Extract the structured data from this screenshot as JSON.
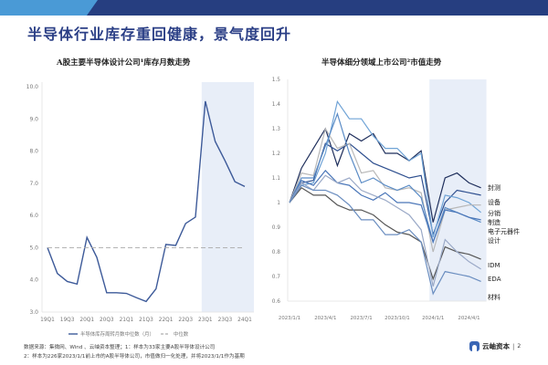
{
  "header": {
    "title": "半导体行业库存重回健康，景气度回升",
    "band_colors": {
      "light": "#4a9ad6",
      "dark": "#263e80"
    }
  },
  "chart_data": [
    {
      "type": "line",
      "title": "A股主要半导体设计公司¹库存月数走势",
      "xlabel": "",
      "ylabel": "",
      "ylim": [
        3.0,
        10.0
      ],
      "yticks": [
        "10.0",
        "9.0",
        "8.0",
        "7.0",
        "6.0",
        "5.0",
        "4.0",
        "3.0"
      ],
      "x_tick_labels": [
        "19Q1",
        "19Q3",
        "20Q1",
        "20Q3",
        "21Q1",
        "21Q3",
        "22Q1",
        "22Q3",
        "23Q1",
        "23Q3",
        "24Q1"
      ],
      "categories": [
        "19Q1",
        "19Q2",
        "19Q3",
        "19Q4",
        "20Q1",
        "20Q2",
        "20Q3",
        "20Q4",
        "21Q1",
        "21Q2",
        "21Q3",
        "21Q4",
        "22Q1",
        "22Q2",
        "22Q3",
        "22Q4",
        "23Q1",
        "23Q2",
        "23Q3",
        "23Q4",
        "24Q1"
      ],
      "series": [
        {
          "name": "半导体库存周转月数中位数（月）",
          "style": "solid",
          "color": "#3d5a99",
          "values": [
            5.0,
            4.2,
            3.95,
            3.87,
            5.32,
            4.7,
            3.6,
            3.6,
            3.58,
            3.45,
            3.33,
            3.72,
            5.1,
            5.07,
            5.75,
            5.95,
            9.55,
            8.3,
            7.7,
            7.05,
            6.9
          ]
        },
        {
          "name": "中位数",
          "style": "dashed",
          "color": "#aaaaaa",
          "values": [
            5.0,
            5.0,
            5.0,
            5.0,
            5.0,
            5.0,
            5.0,
            5.0,
            5.0,
            5.0,
            5.0,
            5.0,
            5.0,
            5.0,
            5.0,
            5.0,
            5.0,
            5.0,
            5.0,
            5.0,
            5.0
          ]
        }
      ],
      "shaded_region": {
        "from": "23Q1",
        "to": "24Q1",
        "color": "#e8eef8"
      },
      "legend": [
        "半导体库存周转月数中位数（月）",
        "中位数"
      ],
      "legend_position": "bottom",
      "grid": false
    },
    {
      "type": "line",
      "title": "半导体细分领域上市公司²市值走势",
      "xlabel": "",
      "ylabel": "",
      "ylim": [
        0.6,
        1.5
      ],
      "yticks": [
        "1.5",
        "1.4",
        "1.3",
        "1.2",
        "1.1",
        "1",
        "0.9",
        "0.8",
        "0.7",
        "0.6"
      ],
      "x_tick_labels": [
        "2023/1/1",
        "2023/4/1",
        "2023/7/1",
        "2023/10/1",
        "2024/1/1",
        "2024/4/1"
      ],
      "x": [
        "2023/1",
        "2023/2",
        "2023/3",
        "2023/4",
        "2023/5",
        "2023/6",
        "2023/7",
        "2023/8",
        "2023/9",
        "2023/10",
        "2023/11",
        "2023/12",
        "2024/1",
        "2024/2",
        "2024/3",
        "2024/4",
        "2024/5"
      ],
      "series": [
        {
          "name": "封测",
          "color": "#1f2f5c",
          "values": [
            1.0,
            1.14,
            1.22,
            1.3,
            1.15,
            1.28,
            1.25,
            1.28,
            1.2,
            1.2,
            1.17,
            1.21,
            0.92,
            1.1,
            1.12,
            1.08,
            1.06
          ]
        },
        {
          "name": "设备",
          "color": "#2e4f8f",
          "values": [
            1.0,
            1.08,
            1.09,
            1.24,
            1.21,
            1.24,
            1.2,
            1.16,
            1.14,
            1.12,
            1.1,
            1.11,
            0.87,
            1.0,
            1.05,
            1.04,
            1.03
          ]
        },
        {
          "name": "分销",
          "color": "#6fa3d6",
          "values": [
            1.0,
            1.07,
            1.08,
            1.2,
            1.41,
            1.34,
            1.34,
            1.27,
            1.22,
            1.22,
            1.17,
            1.2,
            0.86,
            1.03,
            1.02,
            1.0,
            0.96
          ]
        },
        {
          "name": "制造",
          "color": "#b8b8b8",
          "values": [
            1.0,
            1.12,
            1.11,
            1.3,
            1.22,
            1.24,
            1.12,
            1.13,
            1.06,
            1.05,
            1.06,
            1.04,
            0.8,
            0.97,
            0.98,
            0.99,
            0.99
          ]
        },
        {
          "name": "电子元器件",
          "color": "#5b8cc6",
          "values": [
            1.0,
            1.1,
            1.1,
            1.23,
            1.36,
            1.2,
            1.08,
            1.1,
            1.07,
            1.05,
            1.07,
            1.02,
            0.84,
            0.98,
            0.96,
            0.94,
            0.92
          ]
        },
        {
          "name": "设计",
          "color": "#4a76b8",
          "values": [
            1.0,
            1.09,
            1.07,
            1.13,
            1.08,
            1.07,
            1.03,
            1.01,
            1.04,
            1.0,
            1.0,
            0.99,
            0.84,
            0.97,
            0.96,
            0.94,
            0.93
          ]
        },
        {
          "name": "IDM",
          "color": "#555555",
          "values": [
            1.0,
            1.06,
            1.03,
            1.03,
            0.99,
            0.97,
            0.97,
            0.95,
            0.91,
            0.88,
            0.87,
            0.84,
            0.69,
            0.82,
            0.8,
            0.79,
            0.77
          ]
        },
        {
          "name": "EDA",
          "color": "#9aa9c7",
          "values": [
            1.0,
            1.08,
            1.05,
            1.11,
            1.08,
            1.1,
            1.05,
            1.03,
            1.01,
            0.98,
            0.95,
            0.89,
            0.66,
            0.85,
            0.8,
            0.76,
            0.73
          ]
        },
        {
          "name": "材料",
          "color": "#6b8ec0",
          "values": [
            1.0,
            1.07,
            1.05,
            1.05,
            1.03,
            0.99,
            0.93,
            0.93,
            0.87,
            0.87,
            0.89,
            0.84,
            0.63,
            0.72,
            0.71,
            0.7,
            0.68
          ]
        }
      ],
      "shaded_region": {
        "from": "2024/1",
        "to": "2024/5",
        "color": "#e8eef8"
      },
      "legend": [
        "封测",
        "设备",
        "分销",
        "制造",
        "电子元器件",
        "设计",
        "IDM",
        "EDA",
        "材料"
      ],
      "legend_position": "right (inline labels)",
      "grid": false
    }
  ],
  "footnotes": {
    "line1": "数据来源：集微网、Wind 、云岫资本整理；1：样本为33家主要A股半导体设计公司",
    "line2": "2：样本为226家2023/1/1前上市的A股半导体公司，市值做归一化处理，并将2023/1/1作为基期"
  },
  "footer": {
    "brand": "云岫资本",
    "separator": "|",
    "page_number": "2"
  }
}
